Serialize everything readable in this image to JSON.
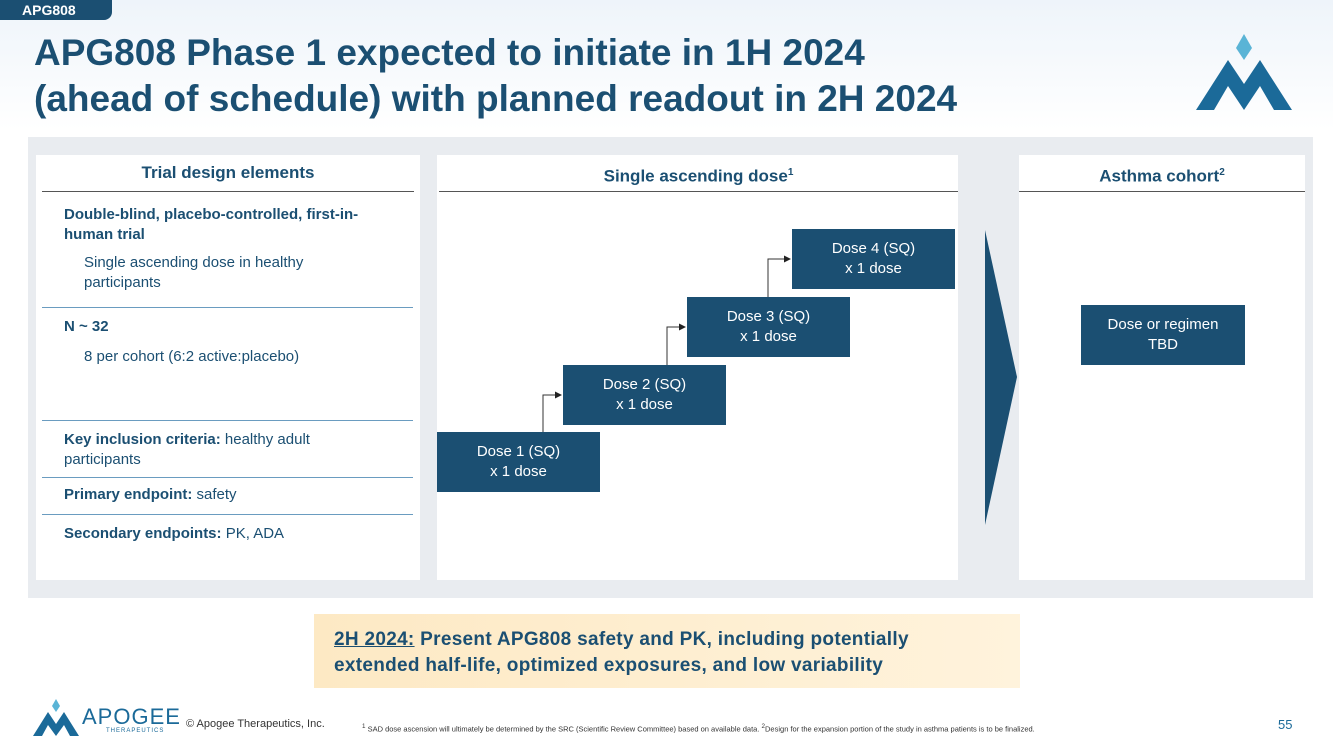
{
  "tag": "APG808",
  "title": [
    "APG808 Phase 1 expected to initiate in 1H 2024",
    "(ahead of schedule) with planned readout in 2H 2024"
  ],
  "trial_design": {
    "header": "Trial design elements",
    "sections": [
      {
        "lead": "Double-blind, placebo-controlled, first-in-human trial",
        "detail": "Single ascending dose in healthy participants"
      },
      {
        "lead": "N ~ 32",
        "detail": "8 per cohort (6:2 active:placebo)"
      },
      {
        "lead": "Key inclusion criteria:",
        "detail": "healthy adult participants"
      },
      {
        "lead": "Primary endpoint:",
        "detail": "safety"
      },
      {
        "lead": "Secondary endpoints:",
        "detail": "PK, ADA"
      }
    ]
  },
  "sad": {
    "header": "Single ascending dose",
    "header_note": "1",
    "doses": [
      [
        "Dose 1 (SQ)",
        "x 1 dose"
      ],
      [
        "Dose 2 (SQ)",
        "x 1 dose"
      ],
      [
        "Dose 3 (SQ)",
        "x 1 dose"
      ],
      [
        "Dose 4 (SQ)",
        "x 1 dose"
      ]
    ]
  },
  "asthma": {
    "header": "Asthma cohort",
    "header_note": "2",
    "box": [
      "Dose or regimen",
      "TBD"
    ]
  },
  "callout": {
    "lead": "2H 2024:",
    "text": "Present APG808 safety and PK, including potentially extended half-life, optimized exposures, and low variability"
  },
  "footer": {
    "logo": "APOGEE",
    "logo_sub": "THERAPEUTICS",
    "copyright": "© Apogee Therapeutics, Inc.",
    "note1_mark": "1",
    "note1": "SAD dose ascension will ultimately be determined by the SRC (Scientific Review Committee) based on available data.",
    "note2_mark": "2",
    "note2": "Design for the expansion portion of the study in asthma patients is to be finalized.",
    "page": "55"
  }
}
